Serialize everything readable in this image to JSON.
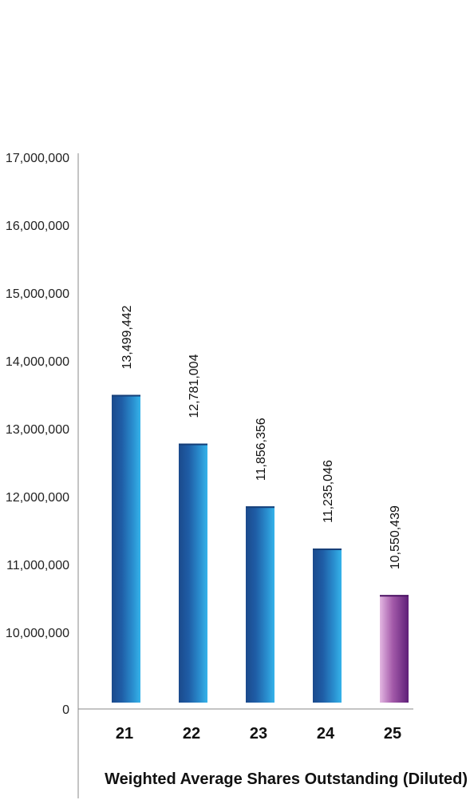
{
  "chart_data": {
    "type": "bar",
    "title": "Weighted Average Shares Outstanding (Diluted)",
    "categories": [
      "21",
      "22",
      "23",
      "24",
      "25"
    ],
    "values": [
      13499442,
      12781004,
      11856356,
      11235046,
      10550439
    ],
    "data_labels": [
      "13,499,442",
      "12,781,004",
      "11,856,356",
      "11,235,046",
      "10,550,439"
    ],
    "yticks": [
      {
        "value": 0,
        "label": "0"
      },
      {
        "value": 10000000,
        "label": "10,000,000"
      },
      {
        "value": 11000000,
        "label": "11,000,000"
      },
      {
        "value": 12000000,
        "label": "12,000,000"
      },
      {
        "value": 13000000,
        "label": "13,000,000"
      },
      {
        "value": 14000000,
        "label": "14,000,000"
      },
      {
        "value": 15000000,
        "label": "15,000,000"
      },
      {
        "value": 16000000,
        "label": "16,000,000"
      },
      {
        "value": 17000000,
        "label": "17,000,000"
      }
    ],
    "ylim": [
      9000000,
      17000000
    ],
    "axis_break": true,
    "grid": false,
    "bar_colors": [
      "blue",
      "blue",
      "blue",
      "blue",
      "purple"
    ],
    "colors": {
      "blue_dark": "#1b4a8c",
      "blue_light": "#2aa7e0",
      "purple_light": "#d9a6d8",
      "purple_dark": "#5e1f78"
    }
  }
}
